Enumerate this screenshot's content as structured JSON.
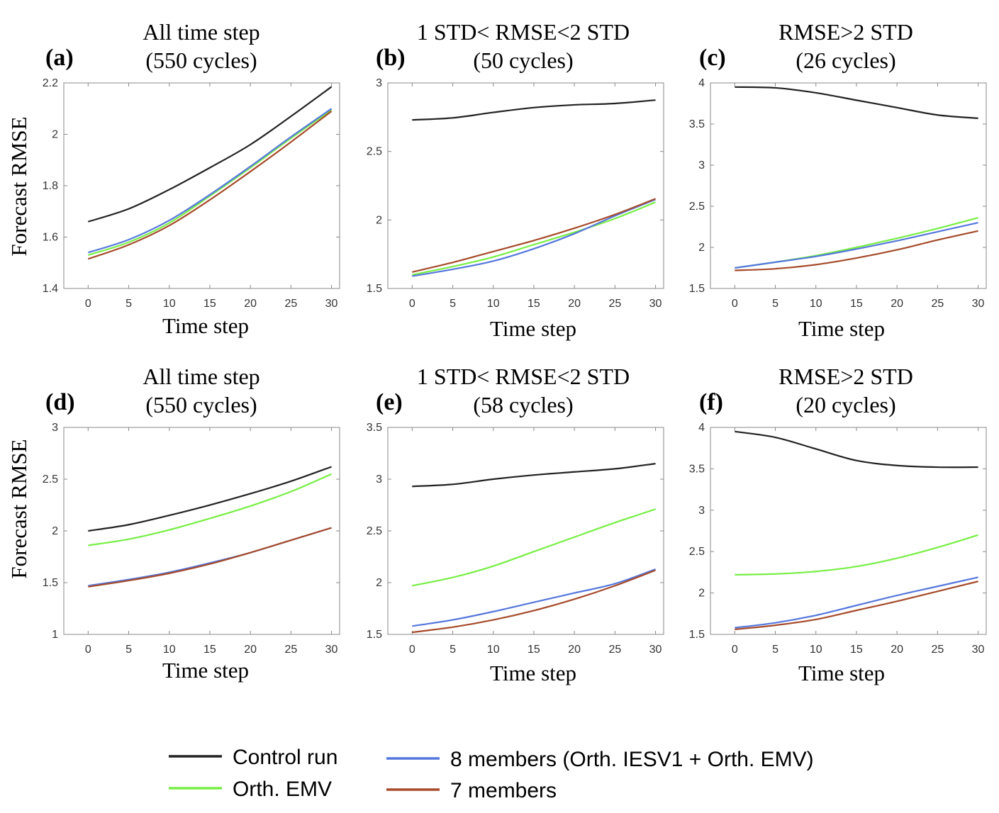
{
  "legend": [
    {
      "label": "Control run",
      "color": "#222222"
    },
    {
      "label": "Orth. EMV",
      "color": "#77ee44"
    },
    {
      "label": "8 members (Orth. IESV1 + Orth. EMV)",
      "color": "#5577dd"
    },
    {
      "label": "7 members",
      "color": "#a64a2a"
    }
  ],
  "chart_data": [
    {
      "type": "line",
      "panel": "(a)",
      "title_lines": [
        "All time step",
        "(550 cycles)"
      ],
      "xlabel": "Time step",
      "ylabel": "Forecast RMSE",
      "xlim": [
        -3,
        31
      ],
      "ylim": [
        1.4,
        2.2
      ],
      "xticks": [
        "0",
        "5",
        "10",
        "15",
        "20",
        "25",
        "30"
      ],
      "yticks": [
        "1.4",
        "1.6",
        "1.8",
        "2",
        "2.2"
      ],
      "x": [
        0,
        5,
        10,
        15,
        20,
        25,
        30
      ],
      "series": [
        {
          "name": "Control run",
          "color": "#222222",
          "values": [
            1.66,
            1.71,
            1.785,
            1.87,
            1.96,
            2.07,
            2.185
          ]
        },
        {
          "name": "Orth. EMV",
          "color": "#77ee44",
          "values": [
            1.53,
            1.58,
            1.655,
            1.76,
            1.87,
            1.985,
            2.095
          ]
        },
        {
          "name": "8 members (Orth. IESV1 + Orth. EMV)",
          "color": "#5577dd",
          "values": [
            1.54,
            1.59,
            1.665,
            1.765,
            1.875,
            1.99,
            2.1
          ]
        },
        {
          "name": "7 members",
          "color": "#a64a2a",
          "values": [
            1.515,
            1.57,
            1.645,
            1.745,
            1.855,
            1.97,
            2.09
          ]
        }
      ]
    },
    {
      "type": "line",
      "panel": "(b)",
      "title_lines": [
        "1 STD< RMSE<2 STD",
        "(50 cycles)"
      ],
      "xlabel": "Time step",
      "ylabel": "",
      "xlim": [
        -3,
        31
      ],
      "ylim": [
        1.5,
        3
      ],
      "xticks": [
        "0",
        "5",
        "10",
        "15",
        "20",
        "25",
        "30"
      ],
      "yticks": [
        "1.5",
        "2",
        "2.5",
        "3"
      ],
      "x": [
        0,
        5,
        10,
        15,
        20,
        25,
        30
      ],
      "series": [
        {
          "name": "Control run",
          "color": "#222222",
          "values": [
            2.73,
            2.745,
            2.785,
            2.82,
            2.84,
            2.85,
            2.875
          ]
        },
        {
          "name": "Orth. EMV",
          "color": "#77ee44",
          "values": [
            1.6,
            1.66,
            1.73,
            1.82,
            1.91,
            2.01,
            2.13
          ]
        },
        {
          "name": "8 members (Orth. IESV1 + Orth. EMV)",
          "color": "#5577dd",
          "values": [
            1.59,
            1.64,
            1.7,
            1.79,
            1.9,
            2.03,
            2.15
          ]
        },
        {
          "name": "7 members",
          "color": "#a64a2a",
          "values": [
            1.62,
            1.69,
            1.77,
            1.85,
            1.94,
            2.04,
            2.155
          ]
        }
      ]
    },
    {
      "type": "line",
      "panel": "(c)",
      "title_lines": [
        "RMSE>2 STD",
        "(26 cycles)"
      ],
      "xlabel": "Time step",
      "ylabel": "",
      "xlim": [
        -3,
        31
      ],
      "ylim": [
        1.5,
        4
      ],
      "xticks": [
        "0",
        "5",
        "10",
        "15",
        "20",
        "25",
        "30"
      ],
      "yticks": [
        "1.5",
        "2",
        "2.5",
        "3",
        "3.5",
        "4"
      ],
      "x": [
        0,
        5,
        10,
        15,
        20,
        25,
        30
      ],
      "series": [
        {
          "name": "Control run",
          "color": "#222222",
          "values": [
            3.95,
            3.94,
            3.88,
            3.79,
            3.7,
            3.61,
            3.57
          ]
        },
        {
          "name": "Orth. EMV",
          "color": "#77ee44",
          "values": [
            1.75,
            1.82,
            1.9,
            2.0,
            2.11,
            2.23,
            2.36
          ]
        },
        {
          "name": "8 members (Orth. IESV1 + Orth. EMV)",
          "color": "#5577dd",
          "values": [
            1.75,
            1.82,
            1.89,
            1.98,
            2.08,
            2.19,
            2.3
          ]
        },
        {
          "name": "7 members",
          "color": "#a64a2a",
          "values": [
            1.72,
            1.74,
            1.79,
            1.87,
            1.97,
            2.09,
            2.2
          ]
        }
      ]
    },
    {
      "type": "line",
      "panel": "(d)",
      "title_lines": [
        "All time step",
        "(550 cycles)"
      ],
      "xlabel": "Time step",
      "ylabel": "Forecast RMSE",
      "xlim": [
        -3,
        31
      ],
      "ylim": [
        1,
        3
      ],
      "xticks": [
        "0",
        "5",
        "10",
        "15",
        "20",
        "25",
        "30"
      ],
      "yticks": [
        "1",
        "1.5",
        "2",
        "2.5",
        "3"
      ],
      "x": [
        0,
        5,
        10,
        15,
        20,
        25,
        30
      ],
      "series": [
        {
          "name": "Control run",
          "color": "#222222",
          "values": [
            2.0,
            2.06,
            2.15,
            2.25,
            2.36,
            2.48,
            2.62
          ]
        },
        {
          "name": "Orth. EMV",
          "color": "#77ee44",
          "values": [
            1.86,
            1.92,
            2.01,
            2.12,
            2.24,
            2.38,
            2.55
          ]
        },
        {
          "name": "8 members (Orth. IESV1 + Orth. EMV)",
          "color": "#5577dd",
          "values": [
            1.47,
            1.53,
            1.6,
            1.69,
            1.79,
            1.91,
            2.03
          ]
        },
        {
          "name": "7 members",
          "color": "#a64a2a",
          "values": [
            1.46,
            1.52,
            1.59,
            1.68,
            1.79,
            1.91,
            2.03
          ]
        }
      ]
    },
    {
      "type": "line",
      "panel": "(e)",
      "title_lines": [
        "1 STD< RMSE<2 STD",
        "(58 cycles)"
      ],
      "xlabel": "Time step",
      "ylabel": "",
      "xlim": [
        -3,
        31
      ],
      "ylim": [
        1.5,
        3.5
      ],
      "xticks": [
        "0",
        "5",
        "10",
        "15",
        "20",
        "25",
        "30"
      ],
      "yticks": [
        "1.5",
        "2",
        "2.5",
        "3",
        "3.5"
      ],
      "x": [
        0,
        5,
        10,
        15,
        20,
        25,
        30
      ],
      "series": [
        {
          "name": "Control run",
          "color": "#222222",
          "values": [
            2.93,
            2.95,
            3.0,
            3.04,
            3.07,
            3.1,
            3.15
          ]
        },
        {
          "name": "Orth. EMV",
          "color": "#77ee44",
          "values": [
            1.97,
            2.05,
            2.16,
            2.3,
            2.44,
            2.58,
            2.71
          ]
        },
        {
          "name": "8 members (Orth. IESV1 + Orth. EMV)",
          "color": "#5577dd",
          "values": [
            1.58,
            1.64,
            1.72,
            1.81,
            1.9,
            1.99,
            2.13
          ]
        },
        {
          "name": "7 members",
          "color": "#a64a2a",
          "values": [
            1.52,
            1.57,
            1.64,
            1.73,
            1.84,
            1.97,
            2.12
          ]
        }
      ]
    },
    {
      "type": "line",
      "panel": "(f)",
      "title_lines": [
        "RMSE>2 STD",
        "(20 cycles)"
      ],
      "xlabel": "Time step",
      "ylabel": "",
      "xlim": [
        -3,
        31
      ],
      "ylim": [
        1.5,
        4
      ],
      "xticks": [
        "0",
        "5",
        "10",
        "15",
        "20",
        "25",
        "30"
      ],
      "yticks": [
        "1.5",
        "2",
        "2.5",
        "3",
        "3.5",
        "4"
      ],
      "x": [
        0,
        5,
        10,
        15,
        20,
        25,
        30
      ],
      "series": [
        {
          "name": "Control run",
          "color": "#222222",
          "values": [
            3.95,
            3.88,
            3.74,
            3.6,
            3.54,
            3.52,
            3.52
          ]
        },
        {
          "name": "Orth. EMV",
          "color": "#77ee44",
          "values": [
            2.22,
            2.23,
            2.26,
            2.32,
            2.42,
            2.55,
            2.7
          ]
        },
        {
          "name": "8 members (Orth. IESV1 + Orth. EMV)",
          "color": "#5577dd",
          "values": [
            1.58,
            1.64,
            1.73,
            1.85,
            1.97,
            2.08,
            2.19
          ]
        },
        {
          "name": "7 members",
          "color": "#a64a2a",
          "values": [
            1.56,
            1.61,
            1.68,
            1.79,
            1.9,
            2.02,
            2.14
          ]
        }
      ]
    }
  ]
}
